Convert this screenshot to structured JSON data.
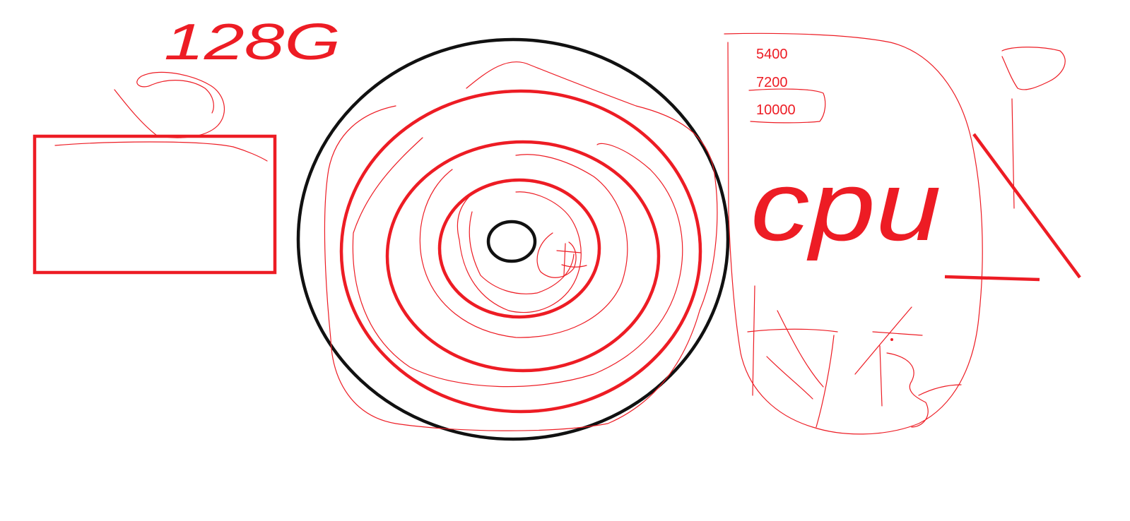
{
  "colors": {
    "ink_red": "#ed1c24",
    "ink_black": "#111111",
    "background": "#ffffff"
  },
  "labels": {
    "capacity": "128G",
    "speed_options": [
      "5400",
      "7200",
      "10000"
    ],
    "handwritten_abbrev": "cpu"
  }
}
